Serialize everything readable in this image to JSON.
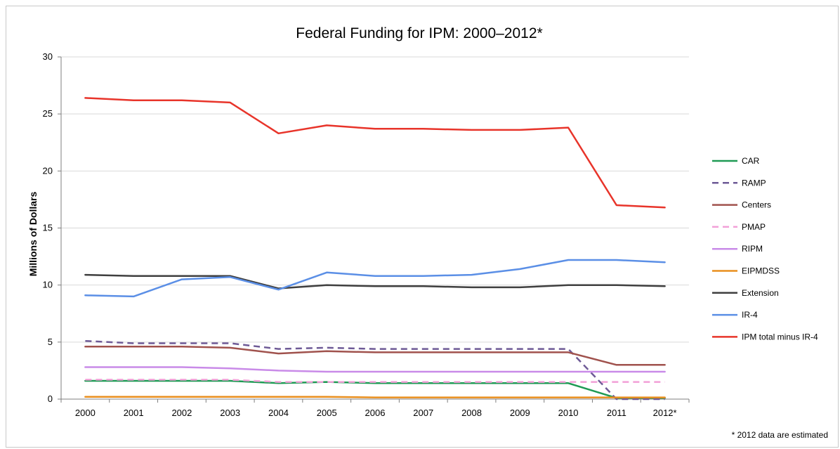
{
  "chart_data": {
    "type": "line",
    "title": "Federal Funding for IPM: 2000–2012*",
    "xlabel": "",
    "ylabel": "Millions of Dollars",
    "ylim": [
      0,
      30
    ],
    "yticks": [
      0,
      5,
      10,
      15,
      20,
      25,
      30
    ],
    "grid": "horizontal",
    "legend_position": "right",
    "footnote": "* 2012 data are estimated",
    "categories": [
      "2000",
      "2001",
      "2002",
      "2003",
      "2004",
      "2005",
      "2006",
      "2007",
      "2008",
      "2009",
      "2010",
      "2011",
      "2012*"
    ],
    "series": [
      {
        "name": "CAR",
        "color": "#1f9a54",
        "dash": "solid",
        "values": [
          1.6,
          1.6,
          1.6,
          1.6,
          1.4,
          1.5,
          1.4,
          1.4,
          1.4,
          1.4,
          1.4,
          0.1,
          0.1
        ]
      },
      {
        "name": "RAMP",
        "color": "#6e5a96",
        "dash": "dashed",
        "values": [
          5.1,
          4.9,
          4.9,
          4.9,
          4.4,
          4.5,
          4.4,
          4.4,
          4.4,
          4.4,
          4.4,
          0.0,
          0.0
        ]
      },
      {
        "name": "Centers",
        "color": "#a0524d",
        "dash": "solid",
        "values": [
          4.6,
          4.6,
          4.6,
          4.5,
          4.0,
          4.2,
          4.1,
          4.1,
          4.1,
          4.1,
          4.1,
          3.0,
          3.0
        ]
      },
      {
        "name": "PMAP",
        "color": "#f2a0d8",
        "dash": "dashed",
        "values": [
          1.7,
          1.7,
          1.7,
          1.7,
          1.5,
          1.5,
          1.5,
          1.5,
          1.5,
          1.5,
          1.5,
          1.5,
          1.5
        ]
      },
      {
        "name": "RIPM",
        "color": "#c98be8",
        "dash": "solid",
        "values": [
          2.8,
          2.8,
          2.8,
          2.7,
          2.5,
          2.4,
          2.4,
          2.4,
          2.4,
          2.4,
          2.4,
          2.4,
          2.4
        ]
      },
      {
        "name": "EIPMDSS",
        "color": "#e98f1e",
        "dash": "solid",
        "values": [
          0.2,
          0.2,
          0.2,
          0.2,
          0.2,
          0.2,
          0.15,
          0.15,
          0.15,
          0.15,
          0.15,
          0.15,
          0.15
        ]
      },
      {
        "name": "Extension",
        "color": "#3f3f3f",
        "dash": "solid",
        "values": [
          10.9,
          10.8,
          10.8,
          10.8,
          9.7,
          10.0,
          9.9,
          9.9,
          9.8,
          9.8,
          10.0,
          10.0,
          9.9
        ]
      },
      {
        "name": "IR-4",
        "color": "#5b8fe6",
        "dash": "solid",
        "values": [
          9.1,
          9.0,
          10.5,
          10.7,
          9.6,
          11.1,
          10.8,
          10.8,
          10.9,
          11.4,
          12.2,
          12.2,
          12.0
        ]
      },
      {
        "name": "IPM total minus IR-4",
        "color": "#e8342a",
        "dash": "solid",
        "values": [
          26.4,
          26.2,
          26.2,
          26.0,
          23.3,
          24.0,
          23.7,
          23.7,
          23.6,
          23.6,
          23.8,
          17.0,
          16.8
        ]
      }
    ]
  }
}
